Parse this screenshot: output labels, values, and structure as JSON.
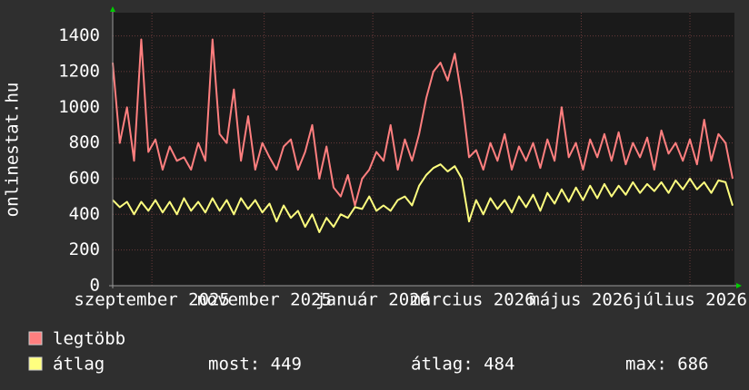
{
  "chart_data": {
    "type": "line",
    "ylabel": "onlinestat.hu",
    "x": [
      0,
      4,
      8,
      12,
      16,
      20,
      24,
      28,
      32,
      36,
      40,
      44,
      48,
      52,
      56,
      60,
      64,
      68,
      72,
      76,
      80,
      84,
      88,
      92,
      96,
      100,
      104,
      108,
      112,
      116,
      120,
      124,
      128,
      132,
      136,
      140,
      144,
      148,
      152,
      156,
      160,
      164,
      168,
      172,
      176,
      180,
      184,
      188,
      192,
      196,
      200,
      204,
      208,
      212,
      216,
      220,
      224,
      228,
      232,
      236,
      240,
      244,
      248,
      252,
      256,
      260,
      264,
      268,
      272,
      276,
      280,
      284,
      288,
      292,
      296,
      300,
      304,
      308,
      312,
      316,
      320,
      324,
      328,
      332,
      336,
      340,
      344,
      348
    ],
    "xlim": [
      0,
      349
    ],
    "xticks": [
      {
        "value": 22,
        "label": "szeptember 2025"
      },
      {
        "value": 85,
        "label": "november 2025"
      },
      {
        "value": 146,
        "label": "január 2026"
      },
      {
        "value": 202,
        "label": "március 2026"
      },
      {
        "value": 263,
        "label": "május 2026"
      },
      {
        "value": 324,
        "label": "július 2026"
      }
    ],
    "ylim": [
      0,
      1530
    ],
    "yticks": [
      0,
      200,
      400,
      600,
      800,
      1000,
      1200,
      1400
    ],
    "grid": true,
    "series": [
      {
        "name": "legtöbb",
        "color": "#ff7f7f",
        "values": [
          1250,
          800,
          1000,
          700,
          1380,
          750,
          820,
          650,
          780,
          700,
          720,
          650,
          800,
          700,
          1380,
          850,
          800,
          1100,
          700,
          950,
          650,
          800,
          720,
          650,
          780,
          820,
          650,
          750,
          900,
          600,
          780,
          550,
          500,
          620,
          450,
          600,
          650,
          750,
          700,
          900,
          650,
          820,
          700,
          850,
          1050,
          1200,
          1250,
          1150,
          1300,
          1050,
          720,
          760,
          650,
          800,
          700,
          850,
          650,
          780,
          700,
          800,
          660,
          820,
          700,
          1000,
          720,
          800,
          650,
          820,
          720,
          850,
          700,
          860,
          680,
          800,
          720,
          830,
          650,
          870,
          740,
          800,
          700,
          820,
          680,
          930,
          700,
          850,
          800,
          600
        ]
      },
      {
        "name": "átlag",
        "color": "#ffff7f",
        "values": [
          480,
          440,
          470,
          400,
          470,
          420,
          480,
          410,
          470,
          400,
          490,
          420,
          470,
          410,
          490,
          420,
          480,
          400,
          490,
          430,
          480,
          410,
          460,
          360,
          450,
          380,
          420,
          330,
          400,
          300,
          380,
          330,
          400,
          380,
          440,
          430,
          500,
          420,
          450,
          420,
          480,
          500,
          450,
          560,
          620,
          660,
          680,
          640,
          670,
          600,
          360,
          480,
          400,
          490,
          430,
          480,
          410,
          500,
          440,
          510,
          420,
          520,
          460,
          540,
          470,
          550,
          480,
          560,
          490,
          570,
          500,
          560,
          510,
          580,
          520,
          570,
          530,
          580,
          520,
          590,
          540,
          600,
          540,
          580,
          520,
          590,
          580,
          449
        ]
      }
    ],
    "legend_stats": [
      "most: 449",
      "átlag: 484",
      "max: 686"
    ]
  }
}
